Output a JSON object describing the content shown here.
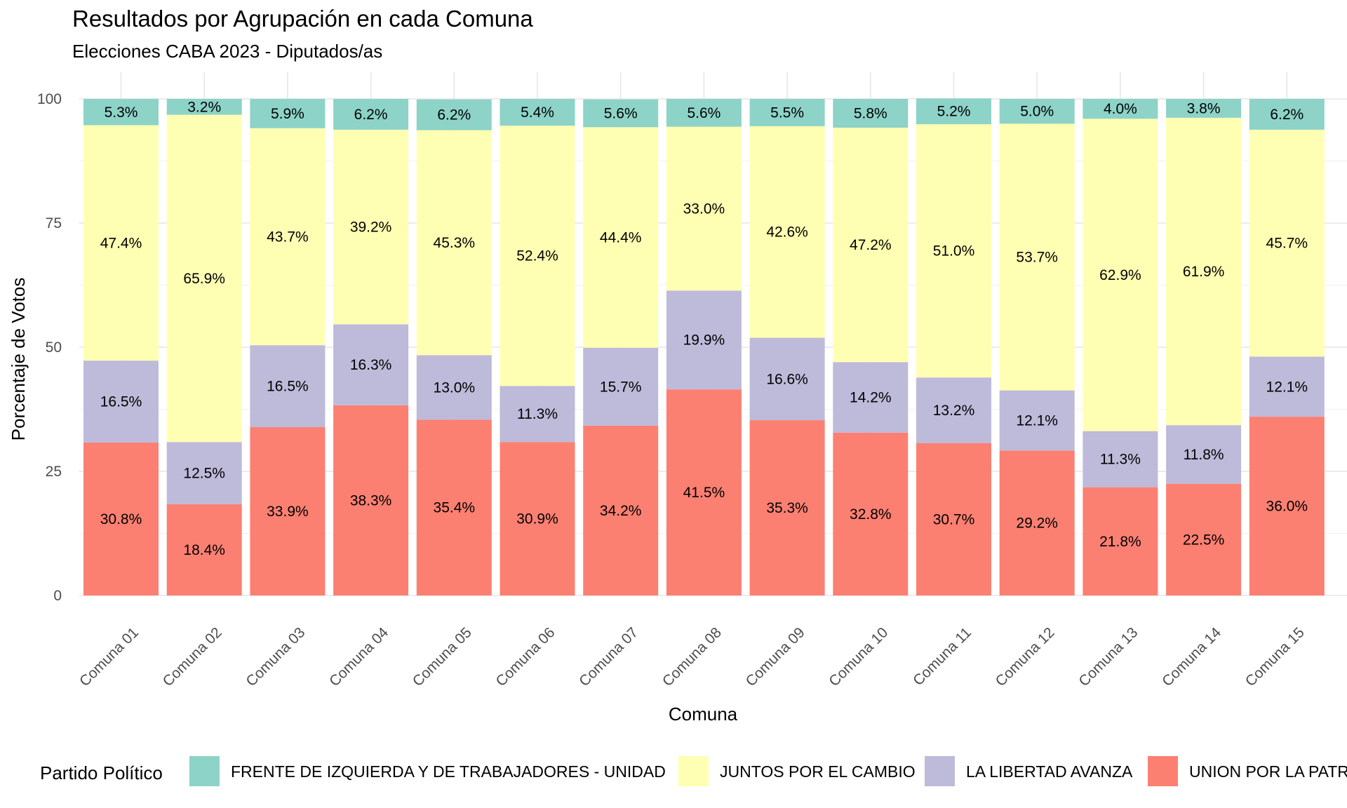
{
  "chart_data": {
    "type": "bar",
    "stacked": true,
    "title": "Resultados por Agrupación en cada Comuna",
    "subtitle": "Elecciones CABA 2023 - Diputados/as",
    "xlabel": "Comuna",
    "ylabel": "Porcentaje de Votos",
    "ylim": [
      0,
      100
    ],
    "yticks": [
      "0",
      "25",
      "50",
      "75",
      "100"
    ],
    "grid": true,
    "legend_title": "Partido Político",
    "legend_position": "bottom",
    "categories": [
      "Comuna 01",
      "Comuna 02",
      "Comuna 03",
      "Comuna 04",
      "Comuna 05",
      "Comuna 06",
      "Comuna 07",
      "Comuna 08",
      "Comuna 09",
      "Comuna 10",
      "Comuna 11",
      "Comuna 12",
      "Comuna 13",
      "Comuna 14",
      "Comuna 15"
    ],
    "series": [
      {
        "name": "UNION POR LA PATRIA",
        "color": "#FB8072",
        "values": [
          30.8,
          18.4,
          33.9,
          38.3,
          35.4,
          30.9,
          34.2,
          41.5,
          35.3,
          32.8,
          30.7,
          29.2,
          21.8,
          22.5,
          36.0
        ],
        "labels": [
          "30.8%",
          "18.4%",
          "33.9%",
          "38.3%",
          "35.4%",
          "30.9%",
          "34.2%",
          "41.5%",
          "35.3%",
          "32.8%",
          "30.7%",
          "29.2%",
          "21.8%",
          "22.5%",
          "36.0%"
        ]
      },
      {
        "name": "LA LIBERTAD AVANZA",
        "color": "#BEBADA",
        "values": [
          16.5,
          12.5,
          16.5,
          16.3,
          13.0,
          11.3,
          15.7,
          19.9,
          16.6,
          14.2,
          13.2,
          12.1,
          11.3,
          11.8,
          12.1
        ],
        "labels": [
          "16.5%",
          "12.5%",
          "16.5%",
          "16.3%",
          "13.0%",
          "11.3%",
          "15.7%",
          "19.9%",
          "16.6%",
          "14.2%",
          "13.2%",
          "12.1%",
          "11.3%",
          "11.8%",
          "12.1%"
        ]
      },
      {
        "name": "JUNTOS POR EL CAMBIO",
        "color": "#FFFFB3",
        "values": [
          47.4,
          65.9,
          43.7,
          39.2,
          45.3,
          52.4,
          44.4,
          33.0,
          42.6,
          47.2,
          51.0,
          53.7,
          62.9,
          61.9,
          45.7
        ],
        "labels": [
          "47.4%",
          "65.9%",
          "43.7%",
          "39.2%",
          "45.3%",
          "52.4%",
          "44.4%",
          "33.0%",
          "42.6%",
          "47.2%",
          "51.0%",
          "53.7%",
          "62.9%",
          "61.9%",
          "45.7%"
        ]
      },
      {
        "name": "FRENTE DE IZQUIERDA Y DE TRABAJADORES - UNIDAD",
        "color": "#8DD3C7",
        "values": [
          5.3,
          3.2,
          5.9,
          6.2,
          6.2,
          5.4,
          5.6,
          5.6,
          5.5,
          5.8,
          5.2,
          5.0,
          4.0,
          3.8,
          6.2
        ],
        "labels": [
          "5.3%",
          "3.2%",
          "5.9%",
          "6.2%",
          "6.2%",
          "5.4%",
          "5.6%",
          "5.6%",
          "5.5%",
          "5.8%",
          "5.2%",
          "5.0%",
          "4.0%",
          "3.8%",
          "6.2%"
        ]
      }
    ],
    "legend_order": [
      "FRENTE DE IZQUIERDA Y DE TRABAJADORES - UNIDAD",
      "JUNTOS POR EL CAMBIO",
      "LA LIBERTAD AVANZA",
      "UNION POR LA PATRIA"
    ],
    "legend_visible_text": [
      "FRENTE DE IZQUIERDA Y DE TRABAJADORES - UNIDAD",
      "JUNTOS POR EL CAMBIO",
      "LA LIBERTAD AVANZA",
      "UNION POR LA PATR"
    ]
  }
}
